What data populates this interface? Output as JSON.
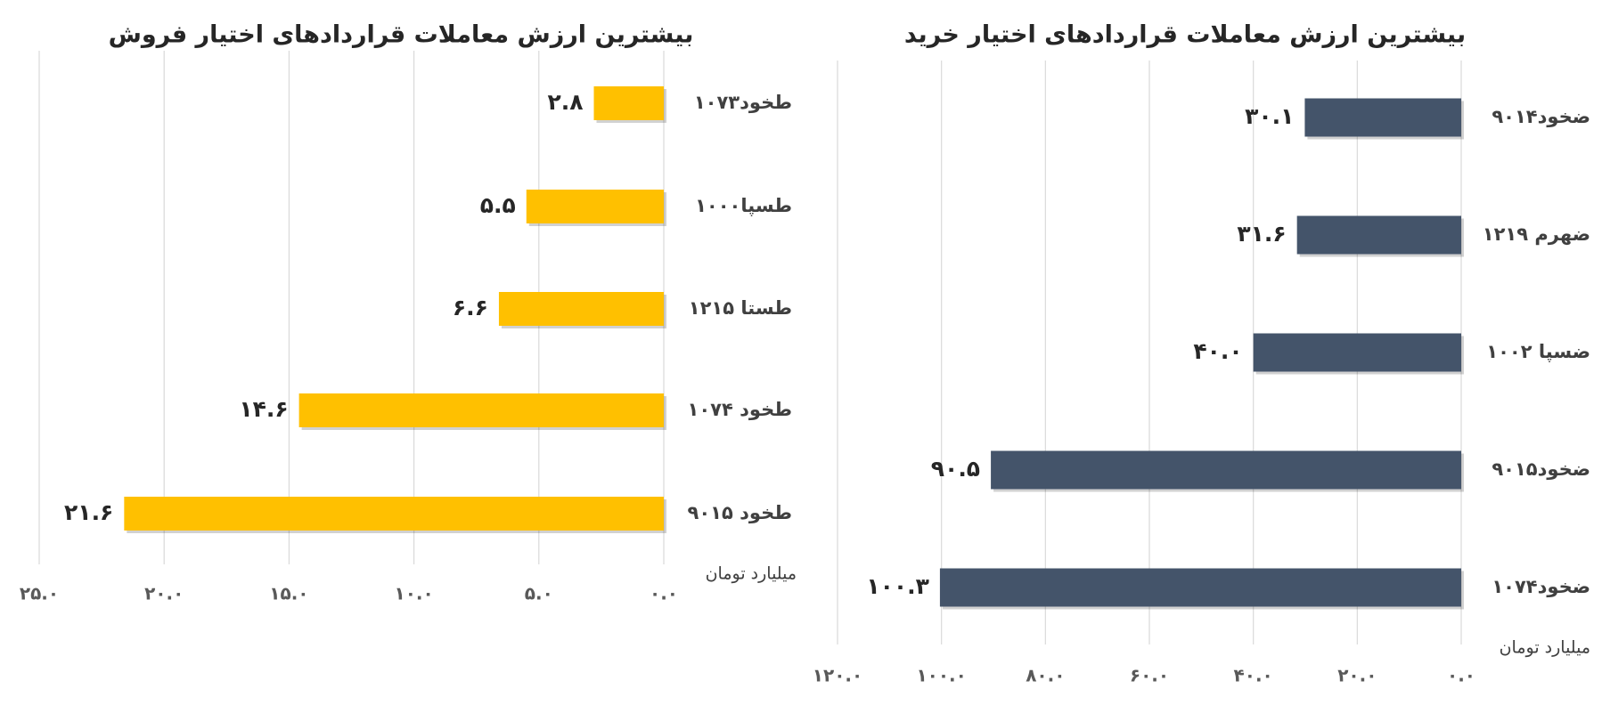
{
  "chart_data": [
    {
      "type": "bar",
      "orientation": "horizontal",
      "x_reversed": true,
      "grid": true,
      "title": "بیشترین ارزش معاملات قراردادهای اختیار فروش",
      "x_label": "میلیارد تومان",
      "categories": [
        "طخود۱۰۷۳",
        "طسپا۱۰۰۰",
        "طستا ۱۲۱۵",
        "طخود ۱۰۷۴",
        "طخود ۹۰۱۵"
      ],
      "values": [
        2.8,
        5.5,
        6.6,
        14.6,
        21.6
      ],
      "value_labels": [
        "۲.۸",
        "۵.۵",
        "۶.۶",
        "۱۴.۶",
        "۲۱.۶"
      ],
      "color": "#ffc000",
      "xlim": [
        0,
        25
      ],
      "xticks": [
        {
          "value": 0,
          "label": "۰.۰"
        },
        {
          "value": 5,
          "label": "۵.۰"
        },
        {
          "value": 10,
          "label": "۱۰.۰"
        },
        {
          "value": 15,
          "label": "۱۵.۰"
        },
        {
          "value": 20,
          "label": "۲۰.۰"
        },
        {
          "value": 25,
          "label": "۲۵.۰"
        }
      ]
    },
    {
      "type": "bar",
      "orientation": "horizontal",
      "x_reversed": true,
      "grid": true,
      "title": "بیشترین ارزش معاملات قراردادهای اختیار خرید",
      "x_label": "میلیارد تومان",
      "categories": [
        "ضخود۹۰۱۴",
        "ضهرم ۱۲۱۹",
        "ضسپا ۱۰۰۲",
        "ضخود۹۰۱۵",
        "ضخود۱۰۷۴"
      ],
      "values": [
        30.1,
        31.6,
        40.0,
        90.5,
        100.3
      ],
      "value_labels": [
        "۳۰.۱",
        "۳۱.۶",
        "۴۰.۰",
        "۹۰.۵",
        "۱۰۰.۳"
      ],
      "color": "#44546a",
      "xlim": [
        0,
        120
      ],
      "xticks": [
        {
          "value": 0,
          "label": "۰.۰"
        },
        {
          "value": 20,
          "label": "۲۰.۰"
        },
        {
          "value": 40,
          "label": "۴۰.۰"
        },
        {
          "value": 60,
          "label": "۶۰.۰"
        },
        {
          "value": 80,
          "label": "۸۰.۰"
        },
        {
          "value": 100,
          "label": "۱۰۰.۰"
        },
        {
          "value": 120,
          "label": "۱۲۰.۰"
        }
      ]
    }
  ]
}
